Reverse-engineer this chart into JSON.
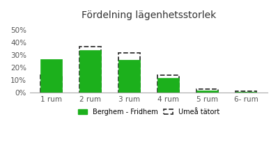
{
  "title": "Fördelning lägenhetsstorlek",
  "categories": [
    "1 rum",
    "2 rum",
    "3 rum",
    "4 rum",
    "5 rum",
    "6- rum"
  ],
  "berghem": [
    27,
    34,
    26,
    12,
    1.5,
    0.5
  ],
  "umea": [
    14,
    37,
    32,
    14,
    3,
    1
  ],
  "bar_color_berghem": "#1cb01c",
  "bar_color_umea": "none",
  "umea_edge_color": "#333333",
  "ylim": [
    0,
    55
  ],
  "yticks": [
    0,
    10,
    20,
    30,
    40,
    50
  ],
  "ytick_labels": [
    "0%",
    "10%",
    "20%",
    "30%",
    "40%",
    "50%"
  ],
  "legend_berghem": "Berghem - Fridhem",
  "legend_umea": "Umeå tätort",
  "background_color": "#ffffff",
  "bar_width": 0.55
}
